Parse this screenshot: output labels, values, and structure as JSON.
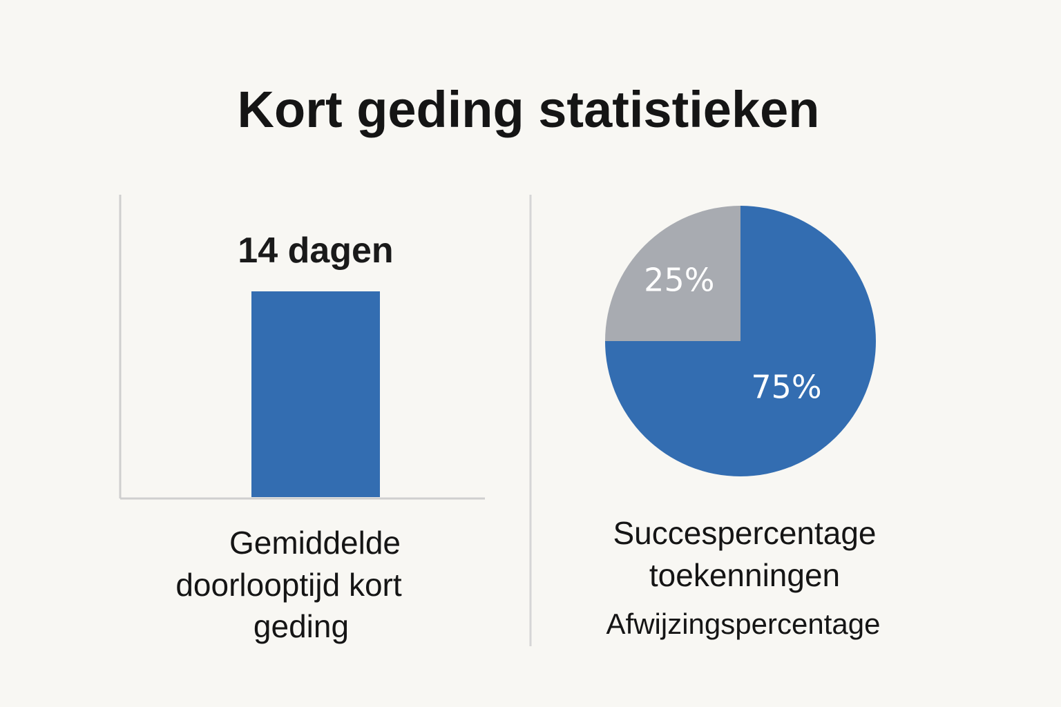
{
  "title": "Kort geding statistieken",
  "colors": {
    "background": "#f8f7f3",
    "bar": "#336db1",
    "pie_primary": "#336db1",
    "pie_secondary": "#a8abb1",
    "axis": "#cfcfcf",
    "divider": "#d6d6d6"
  },
  "chart_data": [
    {
      "type": "bar",
      "categories": [
        "Gemiddelde doorlooptijd kort geding"
      ],
      "values": [
        14
      ],
      "unit": "dagen",
      "value_label": "14 dagen",
      "caption_lines": [
        "Gemiddelde",
        "doorlooptijd kort",
        "geding"
      ],
      "grid": false
    },
    {
      "type": "pie",
      "slices": [
        {
          "label": "75%",
          "value": 75,
          "color": "#336db1"
        },
        {
          "label": "25%",
          "value": 25,
          "color": "#a8abb1"
        }
      ],
      "caption_lines": [
        "Succespercentage",
        "toekenningen"
      ],
      "secondary_caption": "Afwijzingspercentage"
    }
  ]
}
